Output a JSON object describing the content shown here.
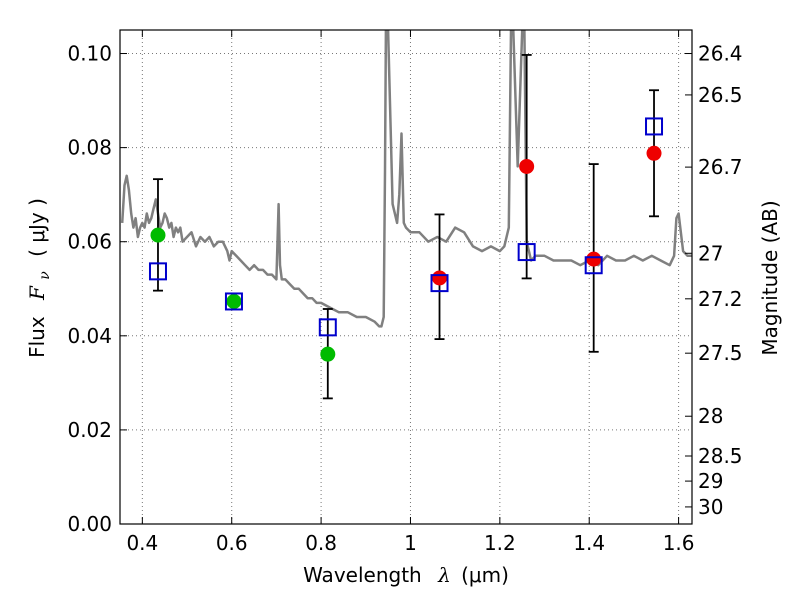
{
  "chart_data": {
    "type": "scatter",
    "xlabel_prefix": "Wavelength",
    "xlabel_symbol": "λ",
    "xlabel_unit": "(μm)",
    "ylabel_prefix": "Flux",
    "ylabel_symbol": "F",
    "ylabel_subscript": "ν",
    "ylabel_unit": "( μJy )",
    "y2label": "Magnitude (AB)",
    "xlim": [
      0.35,
      1.63
    ],
    "ylim": [
      0.0,
      0.105
    ],
    "grid": true,
    "x_ticks": [
      0.4,
      0.6,
      0.8,
      1.0,
      1.2,
      1.4,
      1.6
    ],
    "x_tick_labels": [
      "0.4",
      "0.6",
      "0.8",
      "1",
      "1.2",
      "1.4",
      "1.6"
    ],
    "y_ticks": [
      0.0,
      0.02,
      0.04,
      0.06,
      0.08,
      0.1
    ],
    "y_tick_labels": [
      "0.00",
      "0.02",
      "0.04",
      "0.06",
      "0.08",
      "0.10"
    ],
    "mag_ticks": [
      26.4,
      26.5,
      26.7,
      27,
      27.2,
      27.5,
      28,
      28.5,
      29,
      30
    ],
    "mag_tick_labels": [
      "26.4",
      "26.5",
      "26.7",
      "27",
      "27.2",
      "27.5",
      "28",
      "28.5",
      "29",
      "30"
    ],
    "colors": {
      "sed_model": "#808080",
      "model_box": "#0000cc",
      "green_point": "#00bb00",
      "red_point": "#ee0000",
      "errorbar": "#000000",
      "grid": "#777777"
    },
    "series": [
      {
        "kind": "model_sed",
        "x": [
          0.355,
          0.36,
          0.365,
          0.37,
          0.375,
          0.38,
          0.385,
          0.39,
          0.395,
          0.4,
          0.405,
          0.41,
          0.415,
          0.42,
          0.425,
          0.43,
          0.435,
          0.44,
          0.445,
          0.45,
          0.455,
          0.46,
          0.465,
          0.47,
          0.475,
          0.48,
          0.485,
          0.49,
          0.5,
          0.51,
          0.52,
          0.53,
          0.54,
          0.55,
          0.56,
          0.57,
          0.58,
          0.59,
          0.595,
          0.6,
          0.61,
          0.62,
          0.63,
          0.64,
          0.65,
          0.66,
          0.67,
          0.68,
          0.69,
          0.7,
          0.705,
          0.708,
          0.712,
          0.72,
          0.73,
          0.74,
          0.75,
          0.76,
          0.77,
          0.78,
          0.79,
          0.8,
          0.82,
          0.84,
          0.86,
          0.88,
          0.9,
          0.92,
          0.93,
          0.935,
          0.94,
          0.943,
          0.945,
          0.95,
          0.96,
          0.97,
          0.975,
          0.98,
          0.985,
          0.99,
          1.0,
          1.02,
          1.04,
          1.06,
          1.08,
          1.1,
          1.12,
          1.14,
          1.16,
          1.18,
          1.2,
          1.21,
          1.22,
          1.225,
          1.23,
          1.24,
          1.25,
          1.255,
          1.26,
          1.27,
          1.28,
          1.3,
          1.32,
          1.34,
          1.36,
          1.38,
          1.4,
          1.42,
          1.44,
          1.46,
          1.48,
          1.5,
          1.52,
          1.54,
          1.56,
          1.58,
          1.59,
          1.595,
          1.6,
          1.61,
          1.62,
          1.63
        ],
        "y": [
          0.064,
          0.072,
          0.074,
          0.071,
          0.066,
          0.063,
          0.065,
          0.061,
          0.063,
          0.064,
          0.063,
          0.066,
          0.064,
          0.065,
          0.067,
          0.069,
          0.066,
          0.063,
          0.064,
          0.066,
          0.065,
          0.063,
          0.064,
          0.061,
          0.063,
          0.062,
          0.063,
          0.06,
          0.061,
          0.062,
          0.059,
          0.061,
          0.06,
          0.061,
          0.059,
          0.06,
          0.06,
          0.058,
          0.056,
          0.058,
          0.057,
          0.056,
          0.055,
          0.054,
          0.055,
          0.054,
          0.054,
          0.053,
          0.053,
          0.052,
          0.068,
          0.055,
          0.052,
          0.052,
          0.051,
          0.05,
          0.05,
          0.049,
          0.048,
          0.048,
          0.047,
          0.047,
          0.046,
          0.045,
          0.045,
          0.044,
          0.044,
          0.043,
          0.042,
          0.042,
          0.044,
          0.075,
          0.105,
          0.105,
          0.068,
          0.064,
          0.07,
          0.083,
          0.064,
          0.063,
          0.062,
          0.062,
          0.06,
          0.061,
          0.06,
          0.063,
          0.062,
          0.059,
          0.058,
          0.059,
          0.058,
          0.059,
          0.063,
          0.105,
          0.105,
          0.076,
          0.105,
          0.105,
          0.06,
          0.056,
          0.057,
          0.057,
          0.056,
          0.056,
          0.056,
          0.055,
          0.056,
          0.055,
          0.057,
          0.056,
          0.056,
          0.057,
          0.056,
          0.057,
          0.056,
          0.055,
          0.057,
          0.065,
          0.066,
          0.058,
          0.057,
          0.057
        ]
      },
      {
        "kind": "model_photometry_boxes",
        "x": [
          0.435,
          0.605,
          0.815,
          1.065,
          1.26,
          1.41,
          1.545
        ],
        "y": [
          0.0537,
          0.0473,
          0.0418,
          0.0512,
          0.0578,
          0.055,
          0.0845
        ]
      },
      {
        "kind": "observed_green",
        "x": [
          0.435,
          0.605,
          0.815
        ],
        "y": [
          0.0614,
          0.0473,
          0.0361
        ],
        "err_low": [
          0.0496,
          null,
          0.0267
        ],
        "err_high": [
          0.0733,
          null,
          0.0457
        ]
      },
      {
        "kind": "observed_red",
        "x": [
          1.065,
          1.26,
          1.41,
          1.545
        ],
        "y": [
          0.0523,
          0.076,
          0.0563,
          0.0788
        ],
        "err_low": [
          0.0393,
          0.0522,
          0.0366,
          0.0654
        ],
        "err_high": [
          0.0658,
          0.0997,
          0.0765,
          0.0922
        ]
      }
    ]
  }
}
